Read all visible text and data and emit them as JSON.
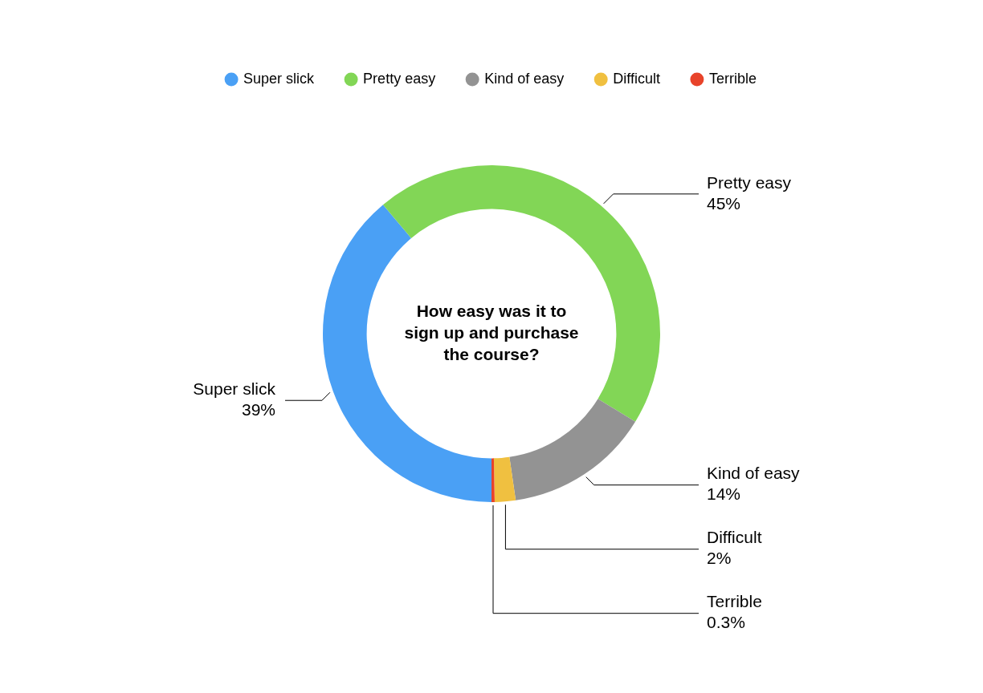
{
  "chart_data": {
    "type": "donut",
    "title": "How easy was it to sign up and purchase the course?",
    "categories": [
      "Super slick",
      "Pretty easy",
      "Kind of easy",
      "Difficult",
      "Terrible"
    ],
    "values": [
      39,
      45,
      14,
      2,
      0.3
    ],
    "value_labels": [
      "39%",
      "45%",
      "14%",
      "2%",
      "0.3%"
    ],
    "colors": [
      "#4aa0f5",
      "#82d656",
      "#939393",
      "#f0c040",
      "#e8432a"
    ],
    "legend": "top"
  }
}
